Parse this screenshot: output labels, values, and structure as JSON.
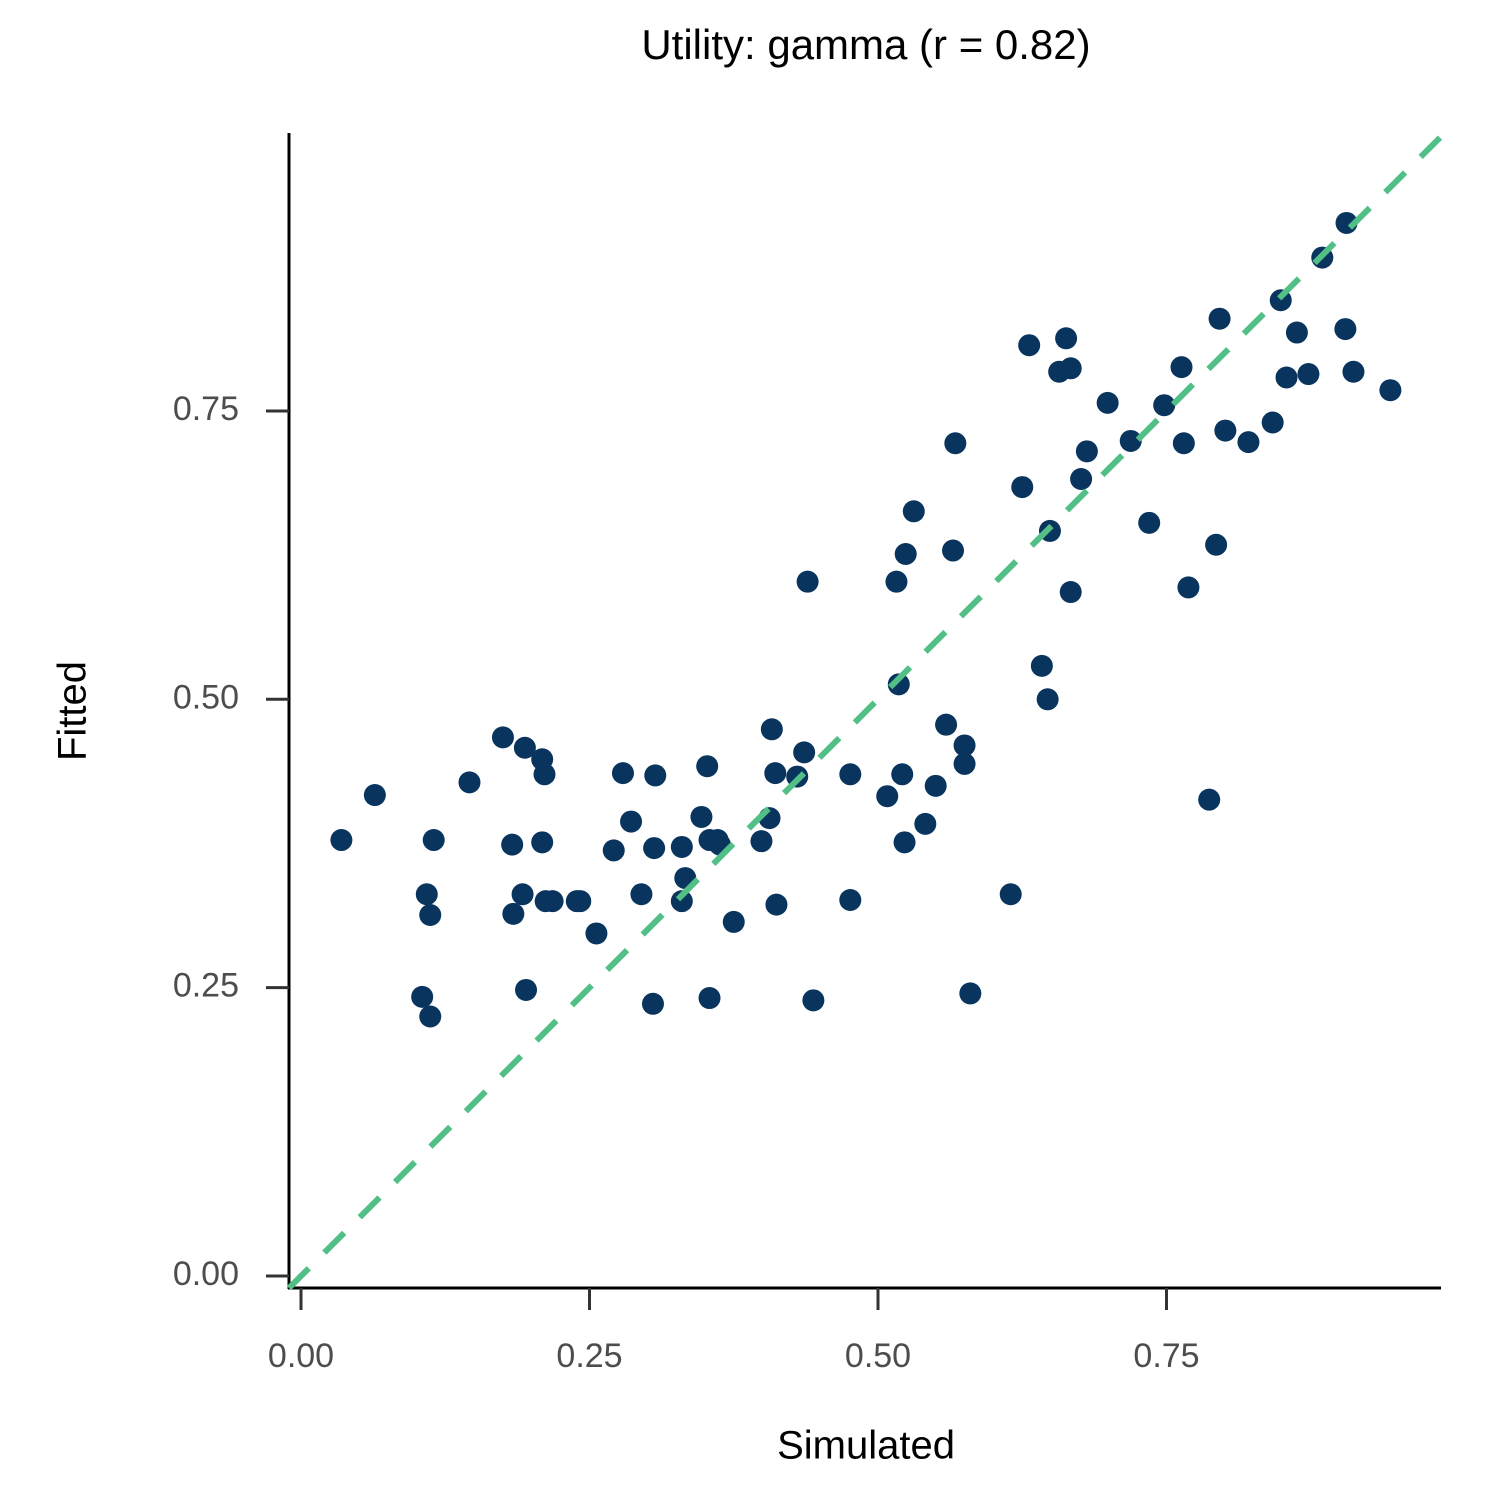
{
  "chart_data": {
    "type": "scatter",
    "title": "Utility: gamma (r = 0.82)",
    "x_label": "Simulated",
    "y_label": "Fitted",
    "color": "#08345e",
    "identity_line": {
      "color": "#52c086",
      "dashed": true
    },
    "xlim": [
      -0.0104,
      0.987
    ],
    "ylim": [
      -0.0104,
      0.991
    ],
    "xticks": [
      {
        "value": 0,
        "label": "0.00"
      },
      {
        "value": 0.25,
        "label": "0.25"
      },
      {
        "value": 0.5,
        "label": "0.50"
      },
      {
        "value": 0.75,
        "label": "0.75"
      }
    ],
    "yticks": [
      {
        "value": 0,
        "label": "0.00"
      },
      {
        "value": 0.25,
        "label": "0.25"
      },
      {
        "value": 0.5,
        "label": "0.50"
      },
      {
        "value": 0.75,
        "label": "0.75"
      }
    ],
    "x": [
      0.035,
      0.064,
      0.146,
      0.175,
      0.194,
      0.209,
      0.211,
      0.115,
      0.109,
      0.112,
      0.105,
      0.112,
      0.183,
      0.209,
      0.192,
      0.184,
      0.212,
      0.218,
      0.239,
      0.242,
      0.195,
      0.256,
      0.271,
      0.279,
      0.286,
      0.307,
      0.295,
      0.306,
      0.305,
      0.33,
      0.333,
      0.33,
      0.347,
      0.352,
      0.354,
      0.361,
      0.363,
      0.375,
      0.354,
      0.399,
      0.406,
      0.408,
      0.411,
      0.412,
      0.43,
      0.436,
      0.439,
      0.444,
      0.476,
      0.476,
      0.508,
      0.516,
      0.518,
      0.521,
      0.523,
      0.524,
      0.531,
      0.541,
      0.55,
      0.559,
      0.565,
      0.567,
      0.575,
      0.575,
      0.58,
      0.615,
      0.625,
      0.631,
      0.642,
      0.647,
      0.649,
      0.657,
      0.663,
      0.667,
      0.667,
      0.676,
      0.681,
      0.699,
      0.719,
      0.735,
      0.748,
      0.763,
      0.765,
      0.769,
      0.787,
      0.793,
      0.796,
      0.801,
      0.821,
      0.842,
      0.849,
      0.854,
      0.863,
      0.873,
      0.885,
      0.905,
      0.906,
      0.912,
      0.944
    ],
    "values": [
      0.378,
      0.417,
      0.428,
      0.467,
      0.458,
      0.448,
      0.435,
      0.378,
      0.331,
      0.313,
      0.242,
      0.225,
      0.374,
      0.376,
      0.331,
      0.314,
      0.325,
      0.325,
      0.325,
      0.325,
      0.248,
      0.297,
      0.369,
      0.436,
      0.394,
      0.434,
      0.331,
      0.371,
      0.236,
      0.372,
      0.345,
      0.325,
      0.398,
      0.442,
      0.378,
      0.378,
      0.374,
      0.307,
      0.241,
      0.377,
      0.397,
      0.474,
      0.436,
      0.322,
      0.433,
      0.454,
      0.602,
      0.239,
      0.435,
      0.326,
      0.416,
      0.602,
      0.513,
      0.435,
      0.376,
      0.626,
      0.663,
      0.392,
      0.425,
      0.478,
      0.629,
      0.722,
      0.46,
      0.444,
      0.245,
      0.331,
      0.684,
      0.807,
      0.529,
      0.5,
      0.646,
      0.784,
      0.813,
      0.787,
      0.593,
      0.691,
      0.715,
      0.757,
      0.724,
      0.653,
      0.755,
      0.788,
      0.722,
      0.597,
      0.413,
      0.634,
      0.83,
      0.733,
      0.723,
      0.74,
      0.846,
      0.779,
      0.818,
      0.782,
      0.883,
      0.821,
      0.913,
      0.784,
      0.768
    ]
  }
}
